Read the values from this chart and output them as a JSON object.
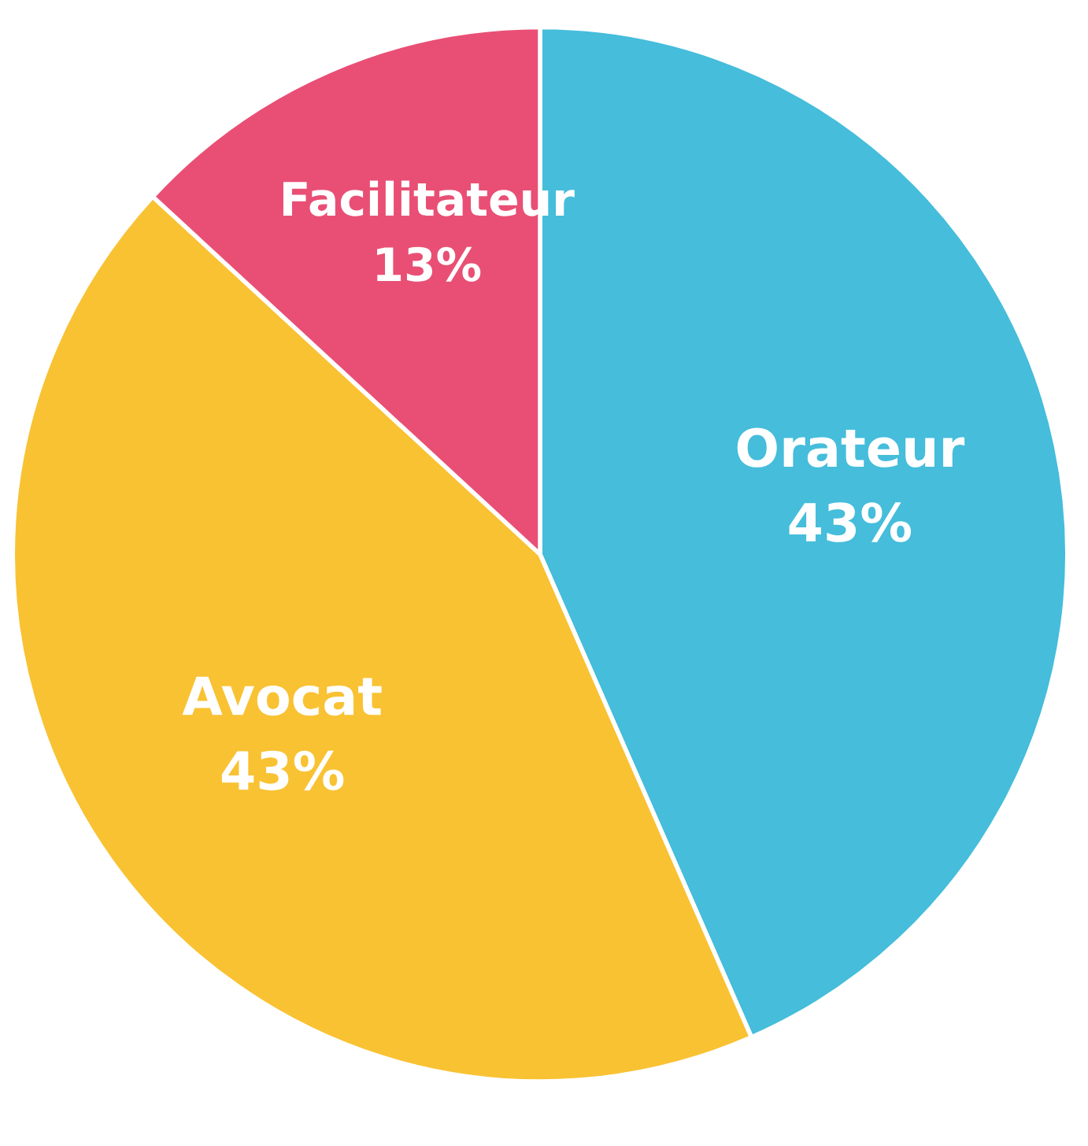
{
  "chart_data": {
    "type": "pie",
    "categories": [
      "Orateur",
      "Avocat",
      "Facilitateur"
    ],
    "values": [
      43,
      43,
      13
    ],
    "colors": [
      "#45bddb",
      "#f9c233",
      "#e94f75"
    ],
    "value_labels": [
      "43%",
      "43%",
      "13%"
    ],
    "legend": false
  }
}
